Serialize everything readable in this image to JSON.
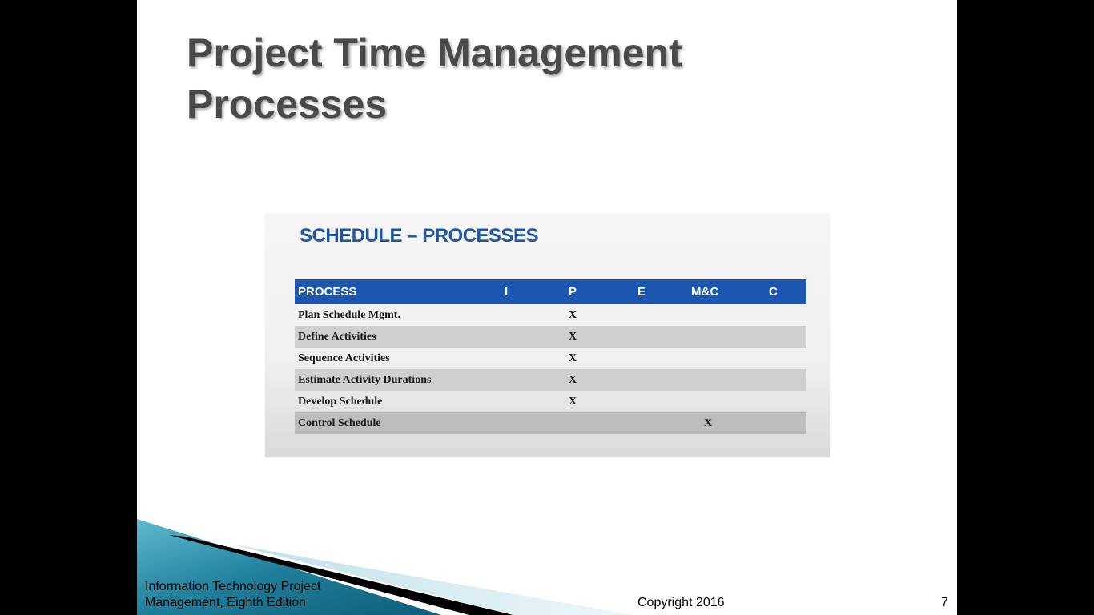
{
  "slide": {
    "title_line1": "Project Time Management",
    "title_line2": "Processes"
  },
  "figure": {
    "title": "SCHEDULE – PROCESSES",
    "table": {
      "headers": [
        "PROCESS",
        "I",
        "P",
        "E",
        "M&C",
        "C"
      ],
      "rows": [
        {
          "process": "Plan Schedule Mgmt.",
          "mark": "X",
          "group": "P"
        },
        {
          "process": "Define Activities",
          "mark": "X",
          "group": "P"
        },
        {
          "process": "Sequence Activities",
          "mark": "X",
          "group": "P"
        },
        {
          "process": "Estimate Activity Durations",
          "mark": "X",
          "group": "P"
        },
        {
          "process": "Develop Schedule",
          "mark": "X",
          "group": "P"
        },
        {
          "process": "Control Schedule",
          "mark": "X",
          "group": "M&C"
        }
      ]
    }
  },
  "footer": {
    "book_line1": "Information Technology Project",
    "book_line2": "Management, Eighth Edition",
    "copyright": "Copyright 2016",
    "page_number": "7"
  },
  "colors": {
    "header_blue": "#1c56b0",
    "title_gray": "#4a4a4a",
    "teal_accent": "#2a8ca6"
  }
}
